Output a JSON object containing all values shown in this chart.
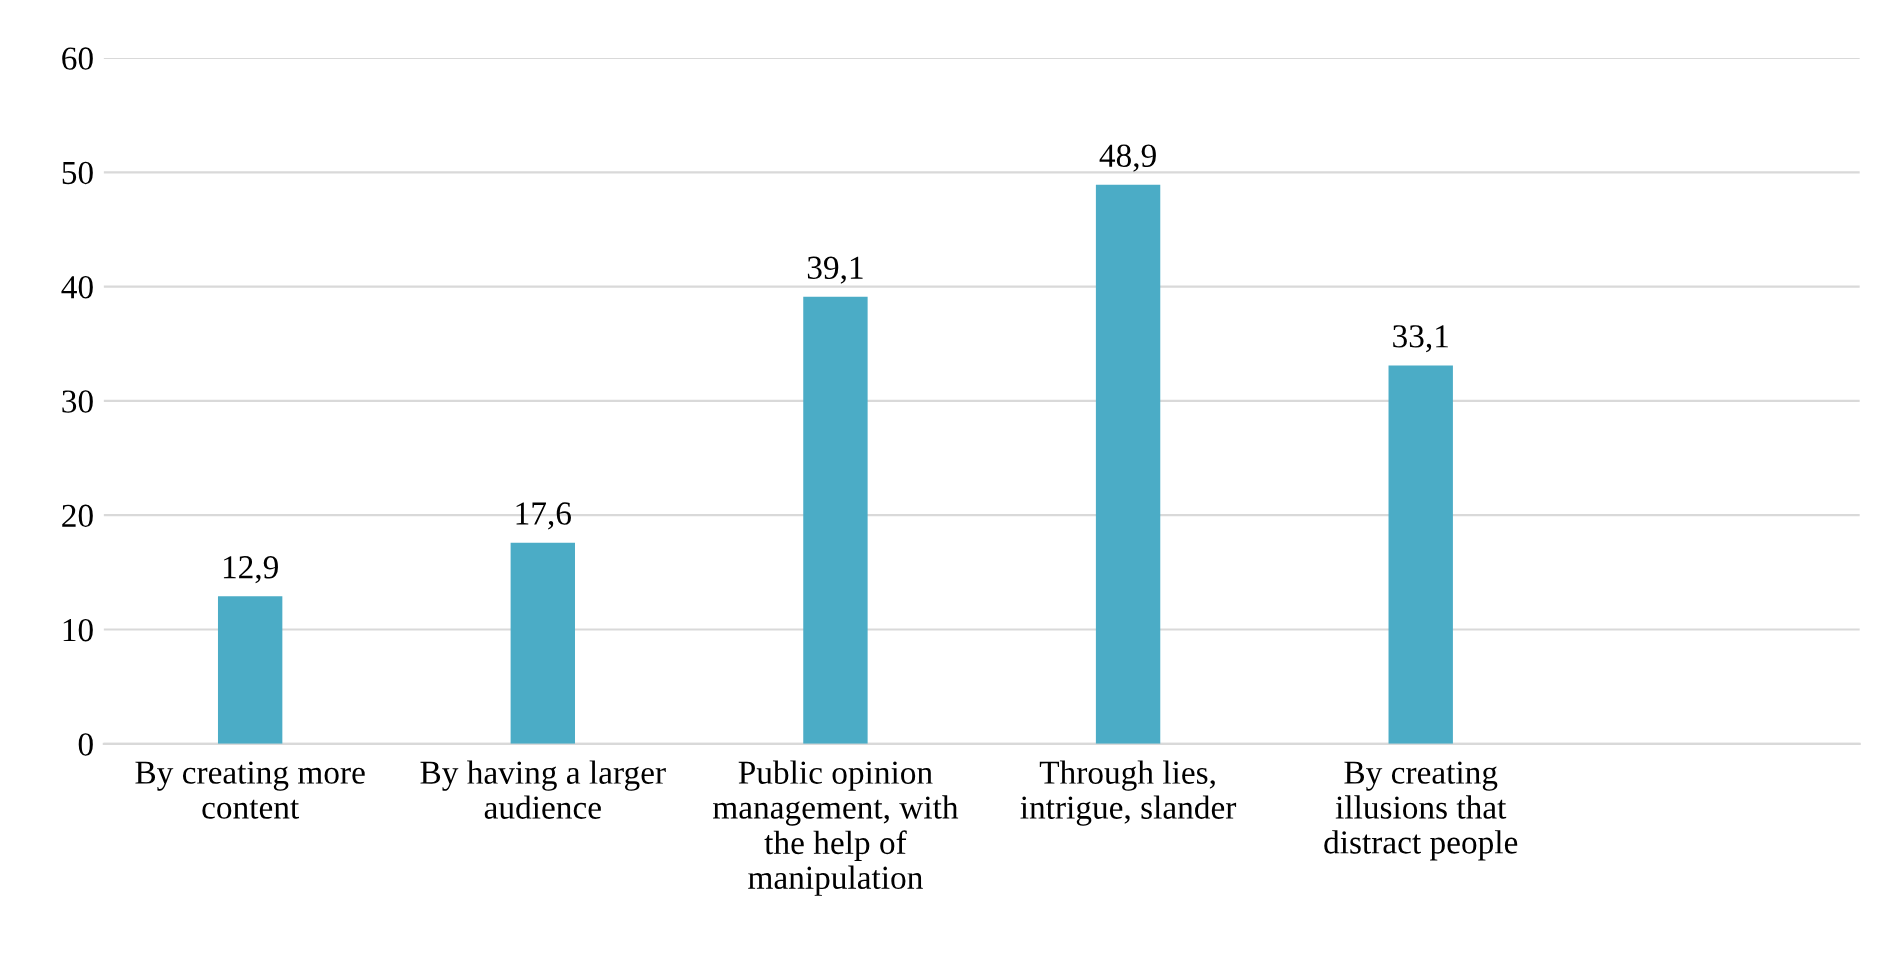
{
  "chart_data": {
    "type": "bar",
    "categories": [
      "By creating more\ncontent",
      "By having a larger\naudience",
      "Public opinion\nmanagement, with\nthe help of\nmanipulation",
      "Through lies,\nintrigue, slander",
      "By creating\nillusions that\ndistract people",
      null
    ],
    "values": [
      12.9,
      17.6,
      39.1,
      48.9,
      33.1,
      null
    ],
    "value_labels": [
      "12,9",
      "17,6",
      "39,1",
      "48,9",
      "33,1",
      null
    ],
    "color": "#4bacc6",
    "ylim": [
      0,
      60
    ],
    "yticks": [
      0,
      10,
      20,
      30,
      40,
      50,
      60
    ],
    "grid": "y",
    "legend": false
  }
}
